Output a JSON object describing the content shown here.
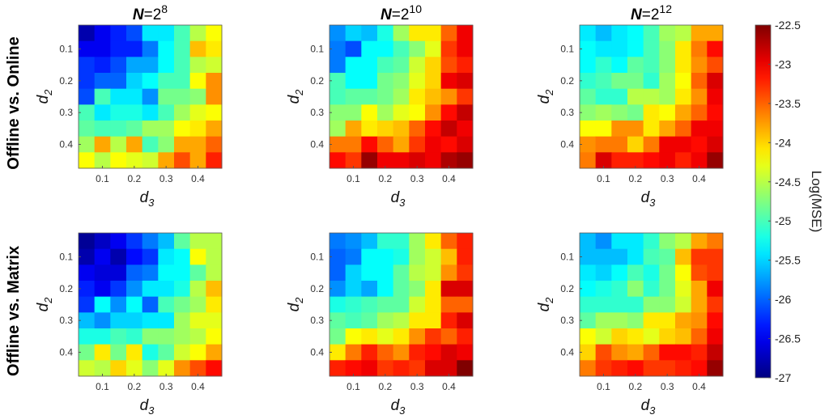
{
  "chart_data": {
    "type": "heatmap",
    "colormap": "jet",
    "clim": [
      -27,
      -22.5
    ],
    "colorbar": {
      "label": "Log(MSE)",
      "ticks": [
        "-22.5",
        "-23",
        "-23.5",
        "-24",
        "-24.5",
        "-25",
        "-25.5",
        "-26",
        "-26.5",
        "-27"
      ]
    },
    "xlabel": "d",
    "xlabel_sub": "3",
    "ylabel": "d",
    "ylabel_sub": "2",
    "axis_values": [
      0.05,
      0.1,
      0.15,
      0.2,
      0.25,
      0.3,
      0.35,
      0.4,
      0.45
    ],
    "tick_labels": [
      "0.1",
      "0.2",
      "0.3",
      "0.4"
    ],
    "row_labels": [
      "Offline vs. Online",
      "Offline vs. Matrix"
    ],
    "column_titles": [
      {
        "prefix": "N",
        "eq": "=2",
        "exp": "8"
      },
      {
        "prefix": "N",
        "eq": "=2",
        "exp": "10"
      },
      {
        "prefix": "N",
        "eq": "=2",
        "exp": "12"
      }
    ],
    "panels": [
      {
        "row": 0,
        "col": 0,
        "values": [
          [
            -26.8,
            -26.5,
            -26.3,
            -26.1,
            -25.4,
            -25.4,
            -25.0,
            -24.5,
            -24.2
          ],
          [
            -26.5,
            -26.5,
            -26.3,
            -26.3,
            -25.9,
            -25.3,
            -25.0,
            -23.9,
            -24.1
          ],
          [
            -26.2,
            -26.3,
            -26.1,
            -25.7,
            -25.7,
            -25.3,
            -25.0,
            -24.5,
            -24.4
          ],
          [
            -26.2,
            -26.0,
            -26.0,
            -25.5,
            -25.3,
            -25.0,
            -25.0,
            -24.2,
            -23.7
          ],
          [
            -26.1,
            -25.0,
            -25.4,
            -25.4,
            -25.8,
            -24.8,
            -24.8,
            -24.7,
            -23.7
          ],
          [
            -25.0,
            -25.4,
            -25.2,
            -25.2,
            -25.4,
            -25.0,
            -24.6,
            -24.3,
            -24.2
          ],
          [
            -24.9,
            -25.0,
            -25.0,
            -24.9,
            -24.6,
            -24.6,
            -24.2,
            -24.1,
            -23.8
          ],
          [
            -24.6,
            -23.8,
            -24.5,
            -23.8,
            -25.0,
            -24.7,
            -23.8,
            -23.8,
            -23.5
          ],
          [
            -24.2,
            -24.5,
            -24.2,
            -24.3,
            -24.4,
            -23.8,
            -23.4,
            -23.8,
            -23.2
          ]
        ]
      },
      {
        "row": 0,
        "col": 1,
        "values": [
          [
            -25.8,
            -25.5,
            -25.6,
            -25.2,
            -24.6,
            -24.1,
            -24.1,
            -23.5,
            -23.0
          ],
          [
            -25.9,
            -26.1,
            -25.3,
            -25.3,
            -25.0,
            -24.7,
            -24.3,
            -23.3,
            -23.0
          ],
          [
            -25.9,
            -25.3,
            -25.3,
            -25.0,
            -24.9,
            -24.4,
            -24.0,
            -23.4,
            -23.2
          ],
          [
            -25.0,
            -25.3,
            -25.3,
            -24.8,
            -24.7,
            -24.3,
            -24.0,
            -23.0,
            -22.9
          ],
          [
            -25.0,
            -24.9,
            -24.9,
            -24.8,
            -24.6,
            -24.1,
            -23.9,
            -23.7,
            -23.3
          ],
          [
            -24.7,
            -24.7,
            -24.2,
            -24.6,
            -24.3,
            -24.2,
            -23.7,
            -23.1,
            -22.8
          ],
          [
            -24.6,
            -23.8,
            -24.1,
            -24.0,
            -23.9,
            -23.5,
            -23.1,
            -22.8,
            -23.0
          ],
          [
            -23.6,
            -23.6,
            -23.1,
            -23.5,
            -23.8,
            -23.3,
            -23.0,
            -23.1,
            -22.9
          ],
          [
            -23.1,
            -23.3,
            -22.6,
            -23.0,
            -23.0,
            -22.9,
            -23.0,
            -22.7,
            -22.6
          ]
        ]
      },
      {
        "row": 0,
        "col": 2,
        "values": [
          [
            -25.4,
            -25.6,
            -25.4,
            -25.3,
            -25.0,
            -24.6,
            -24.5,
            -23.8,
            -23.8
          ],
          [
            -25.3,
            -25.4,
            -25.4,
            -25.3,
            -25.0,
            -24.7,
            -24.1,
            -23.6,
            -23.1
          ],
          [
            -25.3,
            -25.1,
            -25.3,
            -24.9,
            -25.0,
            -24.7,
            -24.1,
            -23.7,
            -23.4
          ],
          [
            -25.1,
            -25.0,
            -24.8,
            -24.8,
            -25.1,
            -24.6,
            -24.2,
            -23.5,
            -22.9
          ],
          [
            -24.9,
            -25.1,
            -25.1,
            -24.5,
            -24.5,
            -24.6,
            -24.1,
            -23.7,
            -23.0
          ],
          [
            -24.7,
            -24.6,
            -24.7,
            -24.8,
            -24.1,
            -24.2,
            -23.8,
            -23.5,
            -23.1
          ],
          [
            -24.2,
            -24.2,
            -23.7,
            -23.7,
            -24.1,
            -23.8,
            -23.5,
            -23.0,
            -23.0
          ],
          [
            -23.7,
            -23.6,
            -23.6,
            -24.0,
            -23.6,
            -23.0,
            -23.0,
            -23.1,
            -22.9
          ],
          [
            -23.6,
            -22.9,
            -23.2,
            -23.2,
            -23.1,
            -23.0,
            -23.2,
            -23.0,
            -22.6
          ]
        ]
      },
      {
        "row": 1,
        "col": 0,
        "values": [
          [
            -26.9,
            -26.7,
            -26.5,
            -26.2,
            -25.9,
            -25.6,
            -24.9,
            -24.5,
            -24.5
          ],
          [
            -26.8,
            -26.5,
            -26.8,
            -26.4,
            -26.2,
            -25.4,
            -25.3,
            -24.2,
            -24.5
          ],
          [
            -26.5,
            -26.6,
            -26.6,
            -26.0,
            -25.9,
            -25.3,
            -25.3,
            -24.9,
            -24.5
          ],
          [
            -26.3,
            -26.5,
            -26.2,
            -25.8,
            -25.4,
            -25.4,
            -25.2,
            -24.5,
            -23.9
          ],
          [
            -26.2,
            -25.3,
            -25.8,
            -25.3,
            -26.0,
            -25.0,
            -24.8,
            -24.6,
            -24.1
          ],
          [
            -25.6,
            -25.8,
            -25.5,
            -25.5,
            -25.4,
            -25.4,
            -24.6,
            -24.3,
            -24.3
          ],
          [
            -25.2,
            -25.2,
            -25.0,
            -25.1,
            -24.7,
            -24.7,
            -24.6,
            -24.5,
            -24.2
          ],
          [
            -24.8,
            -24.1,
            -24.8,
            -24.1,
            -25.2,
            -24.9,
            -24.4,
            -24.2,
            -23.8
          ],
          [
            -24.4,
            -24.5,
            -24.0,
            -24.3,
            -24.7,
            -24.3,
            -23.7,
            -23.4,
            -23.1
          ]
        ]
      },
      {
        "row": 1,
        "col": 1,
        "values": [
          [
            -25.9,
            -25.8,
            -25.6,
            -25.1,
            -25.1,
            -24.6,
            -24.1,
            -23.5,
            -23.2
          ],
          [
            -26.0,
            -25.9,
            -25.3,
            -25.3,
            -25.2,
            -24.6,
            -24.4,
            -23.9,
            -23.2
          ],
          [
            -26.0,
            -25.5,
            -25.3,
            -25.3,
            -24.9,
            -24.5,
            -24.4,
            -23.7,
            -23.3
          ],
          [
            -25.8,
            -25.5,
            -25.7,
            -25.3,
            -24.9,
            -24.7,
            -24.1,
            -22.9,
            -22.9
          ],
          [
            -25.2,
            -25.1,
            -25.0,
            -24.9,
            -24.9,
            -24.4,
            -24.1,
            -23.5,
            -23.5
          ],
          [
            -24.9,
            -25.0,
            -24.9,
            -24.6,
            -24.5,
            -24.1,
            -24.1,
            -23.2,
            -22.9
          ],
          [
            -24.8,
            -24.2,
            -24.1,
            -24.3,
            -24.1,
            -23.7,
            -23.3,
            -23.5,
            -23.2
          ],
          [
            -24.1,
            -23.6,
            -23.2,
            -23.5,
            -23.7,
            -23.2,
            -23.1,
            -22.9,
            -23.0
          ],
          [
            -23.2,
            -23.1,
            -23.0,
            -23.3,
            -23.2,
            -23.3,
            -22.9,
            -22.9,
            -22.5
          ]
        ]
      },
      {
        "row": 1,
        "col": 2,
        "values": [
          [
            -25.6,
            -25.8,
            -25.4,
            -25.4,
            -25.1,
            -24.7,
            -24.5,
            -23.8,
            -23.6
          ],
          [
            -25.6,
            -25.6,
            -25.6,
            -25.4,
            -25.0,
            -24.9,
            -23.9,
            -23.3,
            -23.3
          ],
          [
            -25.4,
            -25.5,
            -25.3,
            -25.0,
            -25.2,
            -24.8,
            -24.2,
            -23.4,
            -23.3
          ],
          [
            -25.3,
            -25.2,
            -25.1,
            -24.7,
            -25.1,
            -24.8,
            -24.3,
            -23.8,
            -23.0
          ],
          [
            -25.1,
            -25.1,
            -25.1,
            -25.1,
            -24.7,
            -24.7,
            -24.4,
            -23.8,
            -23.3
          ],
          [
            -24.9,
            -24.6,
            -24.6,
            -24.7,
            -24.1,
            -24.1,
            -23.8,
            -23.7,
            -23.1
          ],
          [
            -24.2,
            -24.4,
            -24.0,
            -24.1,
            -24.3,
            -24.0,
            -23.9,
            -23.5,
            -23.0
          ],
          [
            -24.0,
            -23.4,
            -23.7,
            -23.8,
            -23.5,
            -23.1,
            -23.1,
            -23.2,
            -22.8
          ],
          [
            -23.6,
            -23.3,
            -23.2,
            -23.1,
            -23.3,
            -23.3,
            -23.2,
            -23.1,
            -22.6
          ]
        ]
      }
    ]
  }
}
